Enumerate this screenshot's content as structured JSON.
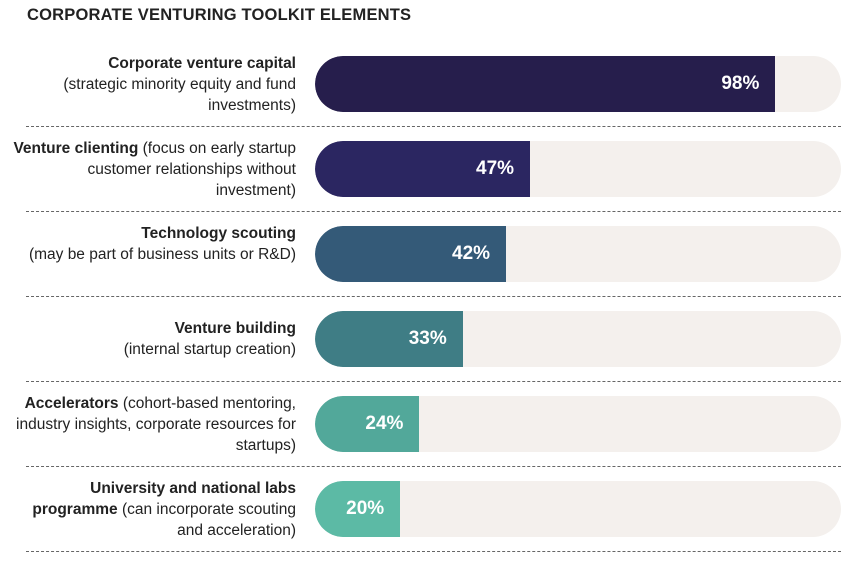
{
  "chart_data": {
    "type": "bar",
    "orientation": "horizontal",
    "title": "CORPORATE VENTURING TOOLKIT ELEMENTS",
    "xlim": [
      0,
      100
    ],
    "grid": false,
    "categories": [
      {
        "bold": "Corporate venture capital",
        "rest": "(strategic minority equity and fund investments)",
        "break_after_bold": true
      },
      {
        "bold": "Venture clienting",
        "rest": " (focus on early startup customer relationships without investment)",
        "break_after_bold": false
      },
      {
        "bold": "Technology scouting",
        "rest": "(may be part of business units or R&D)",
        "break_after_bold": true
      },
      {
        "bold": "Venture building",
        "rest": "(internal startup creation)",
        "break_after_bold": true
      },
      {
        "bold": "Accelerators",
        "rest": " (cohort-based mentoring, industry insights, corporate resources for startups)",
        "break_after_bold": false
      },
      {
        "bold": "University and national labs programme",
        "rest": " (can incorporate scouting and acceleration)",
        "break_after_bold": false
      }
    ],
    "values": [
      98,
      47,
      42,
      33,
      24,
      20
    ],
    "value_labels": [
      "98%",
      "47%",
      "42%",
      "33%",
      "24%",
      "20%"
    ],
    "colors": [
      "#261e4c",
      "#2b2661",
      "#345a78",
      "#3f7d85",
      "#52a89a",
      "#5cbaa5"
    ],
    "track_color": "#f4f0ed"
  }
}
